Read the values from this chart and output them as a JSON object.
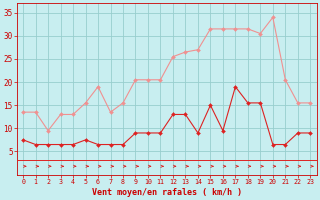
{
  "x": [
    0,
    1,
    2,
    3,
    4,
    5,
    6,
    7,
    8,
    9,
    10,
    11,
    12,
    13,
    14,
    15,
    16,
    17,
    18,
    19,
    20,
    21,
    22,
    23
  ],
  "vent_moyen": [
    7.5,
    6.5,
    6.5,
    6.5,
    6.5,
    7.5,
    6.5,
    6.5,
    6.5,
    9.0,
    9.0,
    9.0,
    13.0,
    13.0,
    9.0,
    15.0,
    9.5,
    19.0,
    15.5,
    15.5,
    6.5,
    6.5,
    9.0,
    9.0
  ],
  "rafales": [
    13.5,
    13.5,
    9.5,
    13.0,
    13.0,
    15.5,
    19.0,
    13.5,
    15.5,
    20.5,
    20.5,
    20.5,
    25.5,
    26.5,
    27.0,
    31.5,
    31.5,
    31.5,
    31.5,
    30.5,
    34.0,
    20.5,
    15.5,
    15.5
  ],
  "color_moyen": "#dd2222",
  "color_rafales": "#f09090",
  "bg_color": "#c8eef0",
  "grid_color": "#98cece",
  "xlabel": "Vent moyen/en rafales ( km/h )",
  "ylim": [
    0,
    37
  ],
  "yticks": [
    5,
    10,
    15,
    20,
    25,
    30,
    35
  ],
  "xticks": [
    0,
    1,
    2,
    3,
    4,
    5,
    6,
    7,
    8,
    9,
    10,
    11,
    12,
    13,
    14,
    15,
    16,
    17,
    18,
    19,
    20,
    21,
    22,
    23
  ],
  "xlabel_color": "#cc0000",
  "tick_color": "#cc0000"
}
